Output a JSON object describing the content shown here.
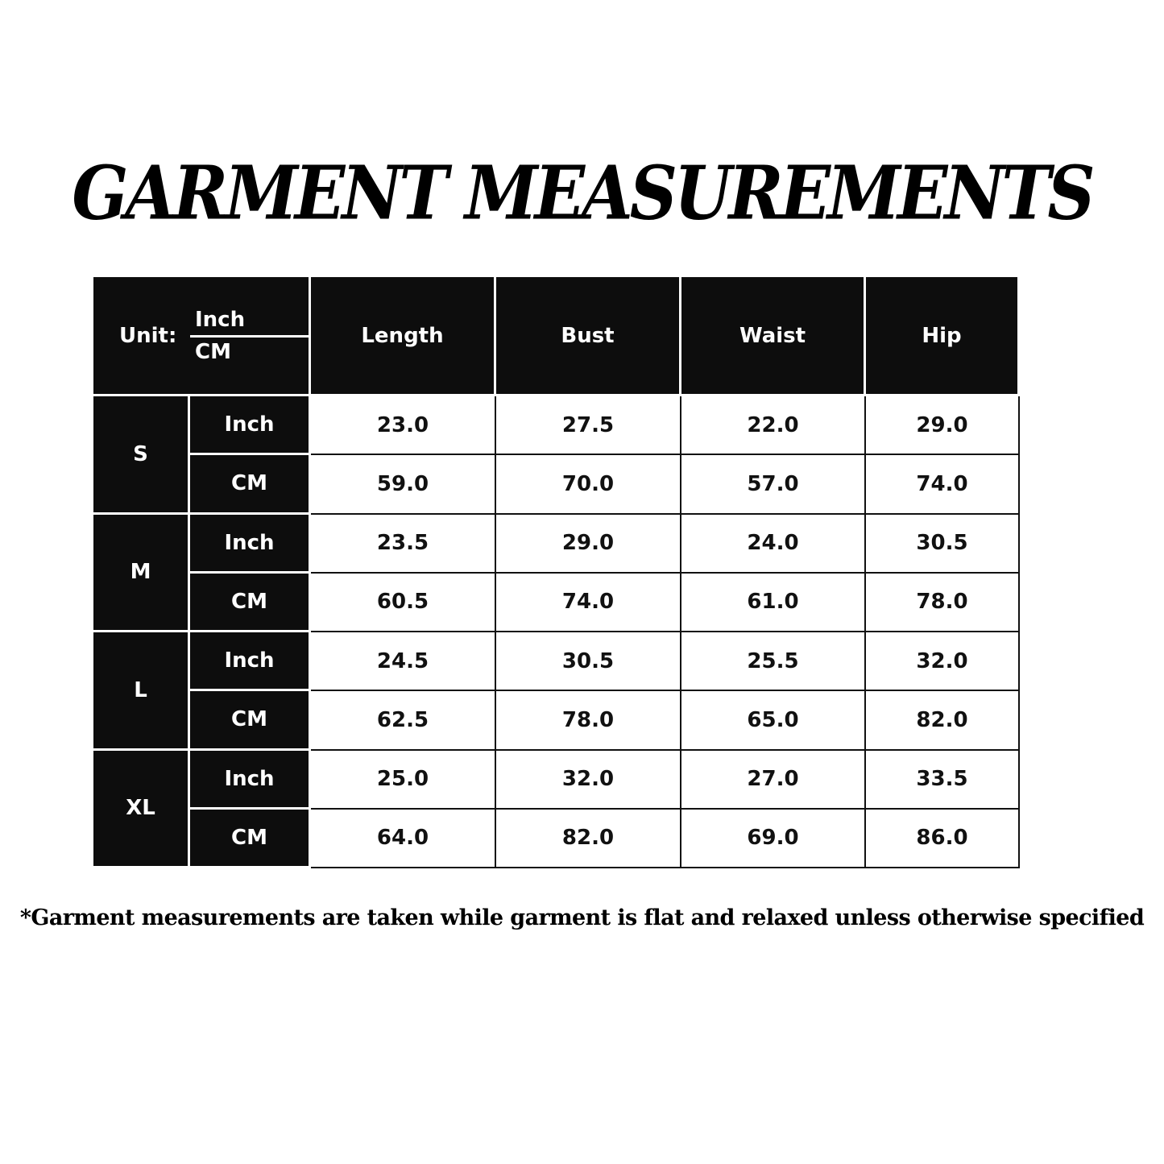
{
  "title": "GARMENT MEASUREMENTS",
  "table": {
    "unit_label": "Unit:",
    "unit_top": "Inch",
    "unit_bottom": "CM",
    "headers": [
      "Length",
      "Bust",
      "Waist",
      "Hip"
    ],
    "sizes": [
      {
        "size": "S",
        "rows": [
          {
            "unit": "Inch",
            "values": [
              "23.0",
              "27.5",
              "22.0",
              "29.0"
            ]
          },
          {
            "unit": "CM",
            "values": [
              "59.0",
              "70.0",
              "57.0",
              "74.0"
            ]
          }
        ]
      },
      {
        "size": "M",
        "rows": [
          {
            "unit": "Inch",
            "values": [
              "23.5",
              "29.0",
              "24.0",
              "30.5"
            ]
          },
          {
            "unit": "CM",
            "values": [
              "60.5",
              "74.0",
              "61.0",
              "78.0"
            ]
          }
        ]
      },
      {
        "size": "L",
        "rows": [
          {
            "unit": "Inch",
            "values": [
              "24.5",
              "30.5",
              "25.5",
              "32.0"
            ]
          },
          {
            "unit": "CM",
            "values": [
              "62.5",
              "78.0",
              "65.0",
              "82.0"
            ]
          }
        ]
      },
      {
        "size": "XL",
        "rows": [
          {
            "unit": "Inch",
            "values": [
              "25.0",
              "32.0",
              "27.0",
              "33.5"
            ]
          },
          {
            "unit": "CM",
            "values": [
              "64.0",
              "82.0",
              "69.0",
              "86.0"
            ]
          }
        ]
      }
    ]
  },
  "footnote": "*Garment measurements are taken while garment is flat and relaxed unless otherwise specified",
  "colors": {
    "header_bg": "#0d0d0d",
    "header_text": "#ffffff",
    "cell_bg": "#ffffff",
    "cell_text": "#111111"
  }
}
